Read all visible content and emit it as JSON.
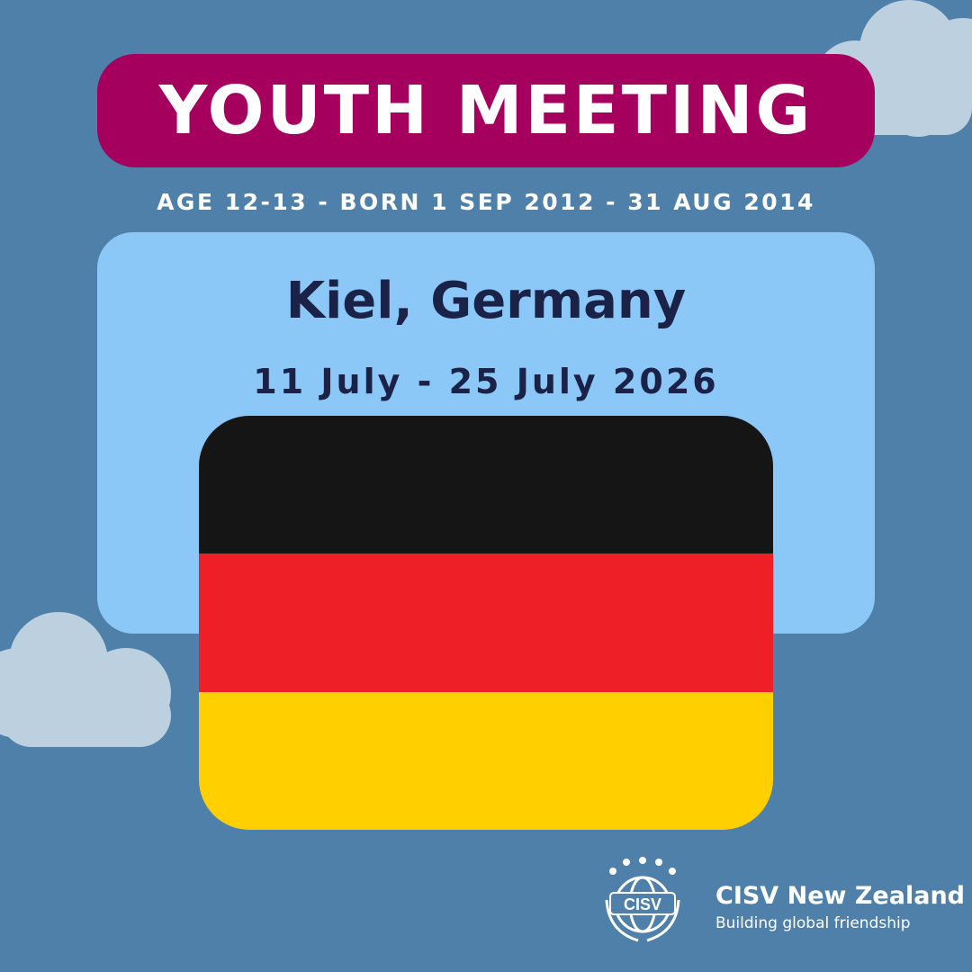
{
  "header": {
    "title": "YOUTH MEETING",
    "subtitle": "AGE 12-13 - BORN 1 SEP 2012 - 31 AUG 2014"
  },
  "event": {
    "location": "Kiel, Germany",
    "dates": "11 July - 25 July 2026"
  },
  "flag": {
    "country": "Germany",
    "colors": [
      "#151515",
      "#ee1f26",
      "#ffcf00"
    ]
  },
  "footer": {
    "logo_text": "CISV",
    "org_name": "CISV New Zealand",
    "tagline": "Building global friendship"
  },
  "colors": {
    "background": "#4e80a9",
    "accent": "#a6005e",
    "panel": "#8cc8f7",
    "cloud": "#bcd0e0",
    "text_dark": "#1b2248"
  }
}
